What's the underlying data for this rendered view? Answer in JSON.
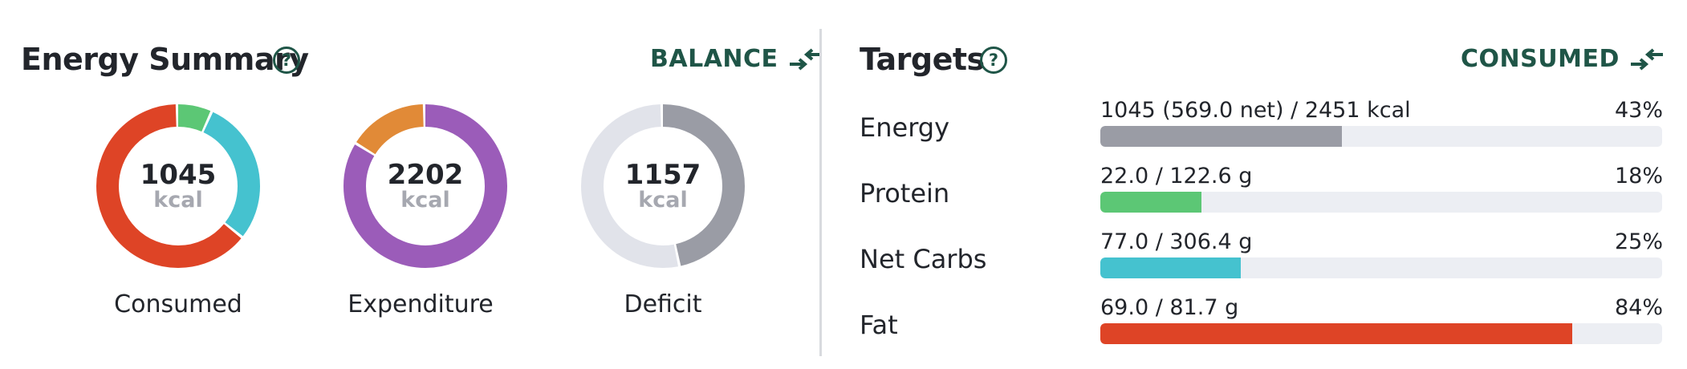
{
  "energy_summary": {
    "title": "Energy Summary",
    "help_glyph": "?",
    "toggle_label": "BALANCE",
    "toggle_icon": "compare-arrows-icon",
    "rings": [
      {
        "key": "consumed",
        "value": "1045",
        "unit": "kcal",
        "label": "Consumed",
        "segments": [
          {
            "name": "protein",
            "fraction": 0.07,
            "color": "#5cc775"
          },
          {
            "name": "carbs",
            "fraction": 0.29,
            "color": "#45c2cf"
          },
          {
            "name": "fat",
            "fraction": 0.64,
            "color": "#de4426"
          }
        ]
      },
      {
        "key": "expenditure",
        "value": "2202",
        "unit": "kcal",
        "label": "Expenditure",
        "segments": [
          {
            "name": "expenditure-main",
            "fraction": 0.84,
            "color": "#9b5cb9"
          },
          {
            "name": "expenditure-activity",
            "fraction": 0.16,
            "color": "#e18a37"
          }
        ]
      },
      {
        "key": "deficit",
        "value": "1157",
        "unit": "kcal",
        "label": "Deficit",
        "segments": [
          {
            "name": "deficit",
            "fraction": 0.47,
            "color": "#9a9ca5"
          },
          {
            "name": "remaining",
            "fraction": 0.53,
            "color": "#e1e3ea"
          }
        ]
      }
    ]
  },
  "targets": {
    "title": "Targets",
    "help_glyph": "?",
    "toggle_label": "CONSUMED",
    "toggle_icon": "compare-arrows-icon",
    "track_color": "#eceef3",
    "rows": [
      {
        "key": "energy",
        "label": "Energy",
        "amount": "1045 (569.0 net) / 2451 kcal",
        "percent_text": "43%",
        "fraction": 0.43,
        "color": "#9a9ca5"
      },
      {
        "key": "protein",
        "label": "Protein",
        "amount": "22.0 / 122.6 g",
        "percent_text": "18%",
        "fraction": 0.18,
        "color": "#5cc775"
      },
      {
        "key": "net-carbs",
        "label": "Net Carbs",
        "amount": "77.0 / 306.4 g",
        "percent_text": "25%",
        "fraction": 0.25,
        "color": "#45c2cf"
      },
      {
        "key": "fat",
        "label": "Fat",
        "amount": "69.0 / 81.7 g",
        "percent_text": "84%",
        "fraction": 0.84,
        "color": "#de4426"
      }
    ]
  }
}
